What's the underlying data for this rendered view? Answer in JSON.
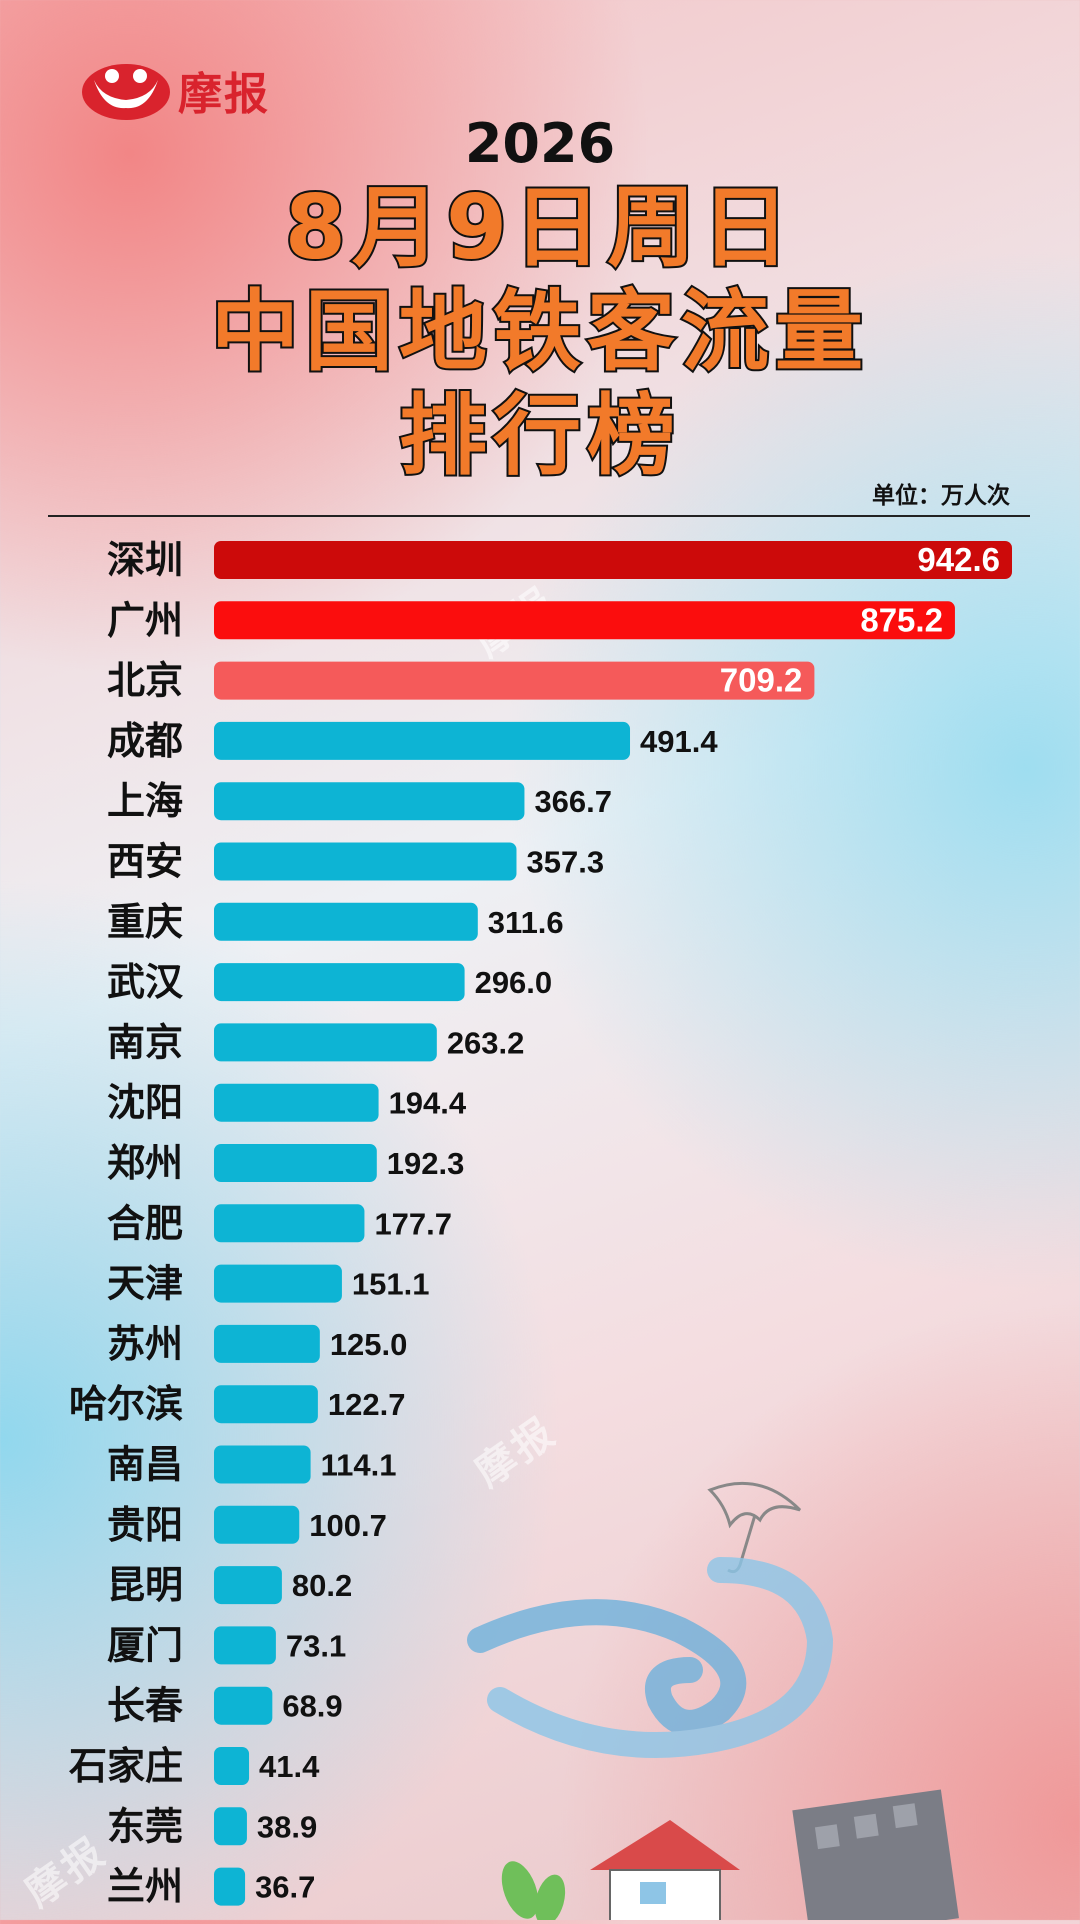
{
  "header": {
    "logo_text": "摩报",
    "year": "2026",
    "title_lines": [
      "8月9日周日",
      "中国地铁客流量",
      "排行榜"
    ],
    "unit": "单位：万人次"
  },
  "watermark": "摩报",
  "colors": {
    "rank1": "#cc0a0a",
    "rank2": "#fb0d0d",
    "rank3": "#f55a5a",
    "others": "#0db4d4",
    "title_fill": "#f27a2a",
    "logo": "#d9232d"
  },
  "chart_data": {
    "type": "bar",
    "orientation": "horizontal",
    "title": "中国地铁客流量排行榜",
    "unit": "万人次",
    "categories": [
      "深圳",
      "广州",
      "北京",
      "成都",
      "上海",
      "西安",
      "重庆",
      "武汉",
      "南京",
      "沈阳",
      "郑州",
      "合肥",
      "天津",
      "苏州",
      "哈尔滨",
      "南昌",
      "贵阳",
      "昆明",
      "厦门",
      "长春",
      "石家庄",
      "东莞",
      "兰州"
    ],
    "values": [
      942.6,
      875.2,
      709.2,
      491.4,
      366.7,
      357.3,
      311.6,
      296.0,
      263.2,
      194.4,
      192.3,
      177.7,
      151.1,
      125.0,
      122.7,
      114.1,
      100.7,
      80.2,
      73.1,
      68.9,
      41.4,
      38.9,
      36.7
    ],
    "value_labels": [
      "942.6",
      "875.2",
      "709.2",
      "491.4",
      "366.7",
      "357.3",
      "311.6",
      "296.0",
      "263.2",
      "194.4",
      "192.3",
      "177.7",
      "151.1",
      "125.0",
      "122.7",
      "114.1",
      "100.7",
      "80.2",
      "73.1",
      "68.9",
      "41.4",
      "38.9",
      "36.7"
    ],
    "xlim": [
      0,
      942.6
    ],
    "grid": false,
    "legend": "none"
  }
}
